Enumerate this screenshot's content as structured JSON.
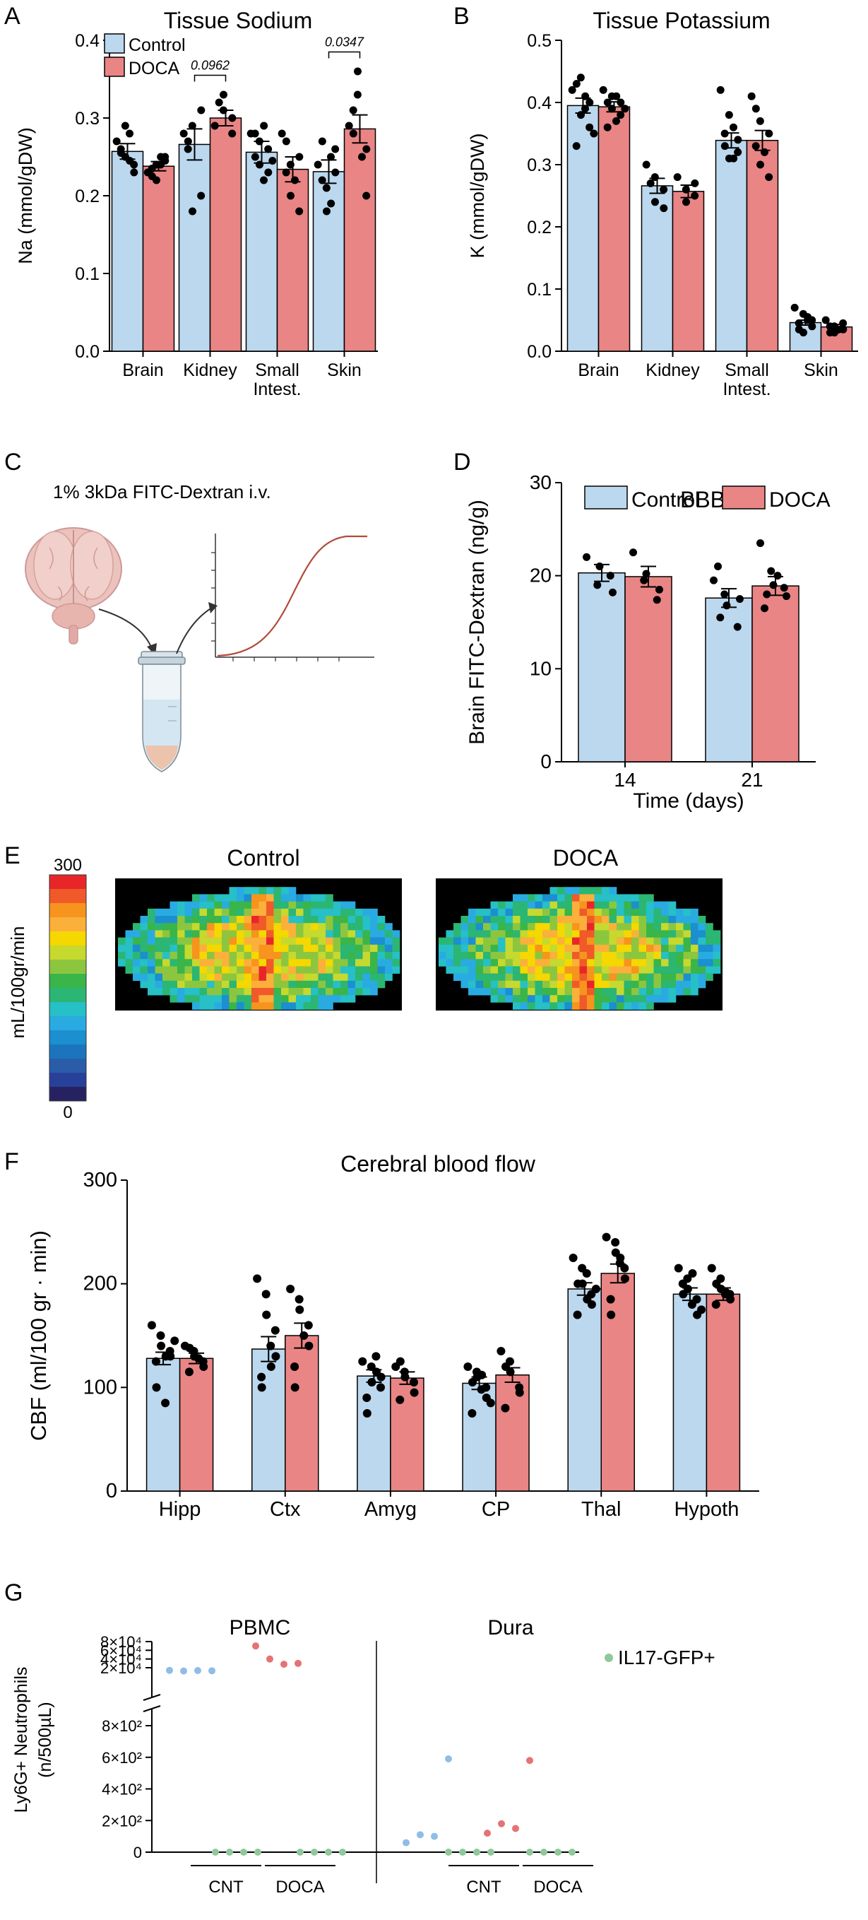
{
  "colors": {
    "control": "#bcd8ee",
    "doca": "#ea8585",
    "dot": "#000000",
    "gfp": "#8fc89a",
    "pbmc_cnt": "#8fbde6",
    "pbmc_doca": "#e57373",
    "curve": "#b24a3a",
    "brain": "#e9b8b4",
    "tube_liquid": "#e8b9a6"
  },
  "panels": {
    "A": {
      "letter": "A",
      "title": "Tissue Sodium"
    },
    "B": {
      "letter": "B",
      "title": "Tissue Potassium"
    },
    "C": {
      "letter": "C",
      "label": "1% 3kDa FITC-Dextran i.v."
    },
    "D": {
      "letter": "D",
      "title": "BBB"
    },
    "E": {
      "letter": "E",
      "left_title": "Control",
      "right_title": "DOCA",
      "scale_max": "300",
      "scale_min": "0",
      "scale_unit": "mL/100gr/min"
    },
    "F": {
      "letter": "F",
      "title": "Cerebral blood flow"
    },
    "G": {
      "letter": "G"
    }
  },
  "chart_data": [
    {
      "id": "A",
      "type": "bar",
      "title": "Tissue Sodium",
      "ylabel": "Na (mmol/gDW)",
      "ylim": [
        0,
        0.4
      ],
      "yticks": [
        "0.0",
        "0.1",
        "0.2",
        "0.3",
        "0.4"
      ],
      "categories": [
        "Brain",
        "Kidney",
        "Small Intest.",
        "Skin"
      ],
      "legend": [
        "Control",
        "DOCA"
      ],
      "series": [
        {
          "name": "Control",
          "values": [
            0.257,
            0.266,
            0.256,
            0.231
          ],
          "sem": [
            0.01,
            0.02,
            0.014,
            0.015
          ],
          "points": [
            [
              0.27,
              0.29,
              0.25,
              0.24,
              0.23,
              0.26,
              0.255,
              0.28,
              0.245
            ],
            [
              0.28,
              0.29,
              0.18,
              0.2,
              0.31,
              0.26,
              0.27
            ],
            [
              0.28,
              0.27,
              0.24,
              0.26,
              0.23,
              0.28,
              0.25,
              0.22,
              0.29,
              0.245
            ],
            [
              0.24,
              0.21,
              0.18,
              0.26,
              0.23,
              0.22,
              0.27,
              0.25,
              0.19
            ]
          ]
        },
        {
          "name": "DOCA",
          "values": [
            0.238,
            0.3,
            0.234,
            0.286
          ],
          "sem": [
            0.006,
            0.01,
            0.016,
            0.018
          ],
          "points": [
            [
              0.23,
              0.24,
              0.22,
              0.25,
              0.245,
              0.235,
              0.225,
              0.24,
              0.25
            ],
            [
              0.29,
              0.31,
              0.33,
              0.28,
              0.3,
              0.32
            ],
            [
              0.28,
              0.24,
              0.2,
              0.18,
              0.25,
              0.23,
              0.27,
              0.22
            ],
            [
              0.29,
              0.33,
              0.36,
              0.2,
              0.26,
              0.31,
              0.28,
              0.25
            ]
          ]
        }
      ],
      "brackets": [
        {
          "category": 1,
          "label": "0.0962",
          "y": 0.355
        },
        {
          "category": 3,
          "label": "0.0347",
          "y": 0.385
        }
      ]
    },
    {
      "id": "B",
      "type": "bar",
      "title": "Tissue Potassium",
      "ylabel": "K (mmol/gDW)",
      "ylim": [
        0,
        0.5
      ],
      "yticks": [
        "0.0",
        "0.1",
        "0.2",
        "0.3",
        "0.4",
        "0.5"
      ],
      "categories": [
        "Brain",
        "Kidney",
        "Small Intest.",
        "Skin"
      ],
      "series": [
        {
          "name": "Control",
          "values": [
            0.395,
            0.266,
            0.339,
            0.046
          ],
          "sem": [
            0.012,
            0.012,
            0.012,
            0.004
          ],
          "points": [
            [
              0.42,
              0.44,
              0.38,
              0.36,
              0.4,
              0.33,
              0.43,
              0.39,
              0.41,
              0.35
            ],
            [
              0.3,
              0.28,
              0.24,
              0.26,
              0.23,
              0.27
            ],
            [
              0.42,
              0.38,
              0.31,
              0.32,
              0.34,
              0.35,
              0.33,
              0.36,
              0.31
            ],
            [
              0.07,
              0.06,
              0.03,
              0.05,
              0.04,
              0.045,
              0.035,
              0.05,
              0.055
            ]
          ]
        },
        {
          "name": "DOCA",
          "values": [
            0.393,
            0.257,
            0.339,
            0.039
          ],
          "sem": [
            0.008,
            0.01,
            0.016,
            0.004
          ],
          "points": [
            [
              0.42,
              0.41,
              0.39,
              0.38,
              0.4,
              0.36,
              0.4,
              0.37,
              0.41,
              0.39
            ],
            [
              0.28,
              0.26,
              0.24,
              0.25,
              0.27
            ],
            [
              0.41,
              0.37,
              0.3,
              0.28,
              0.35,
              0.33,
              0.39,
              0.32
            ],
            [
              0.05,
              0.04,
              0.03,
              0.045,
              0.035,
              0.04,
              0.03,
              0.035
            ]
          ]
        }
      ]
    },
    {
      "id": "D",
      "type": "bar",
      "title": "BBB",
      "ylabel": "Brain FITC-Dextran (ng/g)",
      "xlabel": "Time (days)",
      "ylim": [
        0,
        30
      ],
      "yticks": [
        "0",
        "10",
        "20",
        "30"
      ],
      "categories": [
        "14",
        "21"
      ],
      "legend": [
        "Control",
        "DOCA"
      ],
      "series": [
        {
          "name": "Control",
          "values": [
            20.3,
            17.6
          ],
          "sem": [
            0.9,
            1.0
          ],
          "points": [
            [
              22.0,
              19.0,
              21.0,
              20.0,
              18.2
            ],
            [
              19.5,
              18.0,
              16.8,
              14.5,
              17.5,
              21.0,
              15.5
            ]
          ]
        },
        {
          "name": "DOCA",
          "values": [
            19.9,
            18.9
          ],
          "sem": [
            1.1,
            1.0
          ],
          "points": [
            [
              22.5,
              19.5,
              20.2,
              17.4,
              18.5
            ],
            [
              23.5,
              20.5,
              19.0,
              18.7,
              17.8,
              16.5,
              18.0,
              20.0
            ]
          ]
        }
      ]
    },
    {
      "id": "F",
      "type": "bar",
      "title": "Cerebral blood flow",
      "ylabel": "CBF (ml/100 gr · min)",
      "ylim": [
        0,
        300
      ],
      "yticks": [
        "0",
        "100",
        "200",
        "300"
      ],
      "categories": [
        "Hipp",
        "Ctx",
        "Amyg",
        "CP",
        "Thal",
        "Hypoth"
      ],
      "series": [
        {
          "name": "Control",
          "values": [
            128,
            137,
            111,
            104,
            195,
            190
          ],
          "sem": [
            6,
            12,
            6,
            6,
            6,
            6
          ],
          "points": [
            [
              160,
              150,
              140,
              135,
              130,
              125,
              100,
              85,
              130,
              145
            ],
            [
              205,
              190,
              170,
              155,
              130,
              110,
              100,
              140,
              120
            ],
            [
              125,
              120,
              105,
              100,
              110,
              90,
              75,
              130,
              115
            ],
            [
              120,
              115,
              110,
              100,
              90,
              75,
              105,
              98,
              112,
              85
            ],
            [
              225,
              215,
              200,
              190,
              180,
              170,
              200,
              210,
              185,
              195
            ],
            [
              215,
              205,
              195,
              185,
              170,
              200,
              190,
              180,
              210,
              175
            ]
          ]
        },
        {
          "name": "DOCA",
          "values": [
            128,
            150,
            109,
            112,
            210,
            190
          ],
          "sem": [
            5,
            12,
            6,
            7,
            9,
            6
          ],
          "points": [
            [
              140,
              135,
              130,
              125,
              120,
              115,
              138,
              128
            ],
            [
              195,
              185,
              175,
              160,
              140,
              120,
              100,
              150
            ],
            [
              120,
              115,
              110,
              105,
              95,
              88,
              125
            ],
            [
              135,
              125,
              115,
              100,
              95,
              80,
              120
            ],
            [
              245,
              240,
              230,
              215,
              205,
              185,
              170,
              220,
              225
            ],
            [
              215,
              205,
              195,
              190,
              185,
              180,
              200,
              190,
              192
            ]
          ]
        }
      ]
    },
    {
      "id": "G",
      "type": "scatter",
      "ylabel": "Ly6G+ Neutrophils (n/500µL)",
      "groups_top": [
        "PBMC",
        "Dura"
      ],
      "xgroups": [
        "CNT",
        "DOCA",
        "CNT",
        "DOCA"
      ],
      "legend": [
        "IL17-GFP+"
      ],
      "yticks_upper": [
        "8×10⁴",
        "6×10⁴",
        "4×10⁴",
        "2×10⁴"
      ],
      "yticks_lower": [
        "8×10²",
        "6×10²",
        "4×10²",
        "2×10²",
        "0"
      ],
      "pbmc": {
        "cnt": [
          14000,
          12500,
          13500,
          13000
        ],
        "doca": [
          70000,
          40000,
          28000,
          30000
        ],
        "cnt_gfp": [
          0,
          0,
          0,
          0
        ],
        "doca_gfp": [
          0,
          0,
          0,
          0
        ]
      },
      "dura": {
        "cnt": [
          60,
          110,
          100,
          590
        ],
        "doca": [
          120,
          180,
          150,
          580
        ],
        "cnt_gfp": [
          0,
          0,
          0,
          0
        ],
        "doca_gfp": [
          0,
          0,
          0,
          0
        ]
      }
    }
  ]
}
